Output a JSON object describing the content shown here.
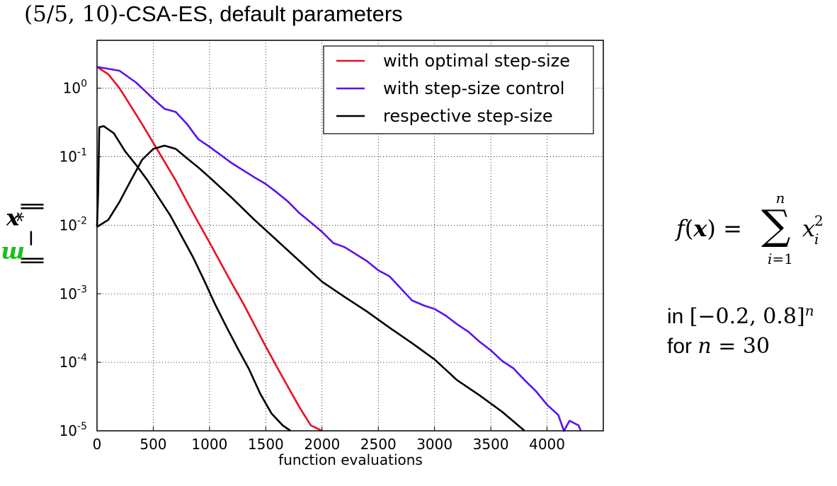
{
  "header": {
    "title_math": "(5/5, 10)",
    "title_text": "-CSA-ES, default parameters"
  },
  "chart_data": {
    "type": "line",
    "xlabel": "function evaluations",
    "ylabel": "||m − x*||",
    "xlim": [
      0,
      4500
    ],
    "ylim": [
      1e-05,
      5
    ],
    "yscale": "log",
    "grid": true,
    "legend_position": "top-right",
    "x_ticks": [
      "0",
      "500",
      "1000",
      "1500",
      "2000",
      "2500",
      "3000",
      "3500",
      "4000"
    ],
    "x_tick_values": [
      0,
      500,
      1000,
      1500,
      2000,
      2500,
      3000,
      3500,
      4000
    ],
    "y_ticks": [
      {
        "base": "10",
        "exp": "0",
        "value": 1
      },
      {
        "base": "10",
        "exp": "-1",
        "value": 0.1
      },
      {
        "base": "10",
        "exp": "-2",
        "value": 0.01
      },
      {
        "base": "10",
        "exp": "-3",
        "value": 0.001
      },
      {
        "base": "10",
        "exp": "-4",
        "value": 0.0001
      },
      {
        "base": "10",
        "exp": "-5",
        "value": 1e-05
      }
    ],
    "series": [
      {
        "name": "with optimal step-size",
        "color": "#e8101e",
        "points": [
          [
            0,
            2.05
          ],
          [
            100,
            1.6
          ],
          [
            200,
            1.0
          ],
          [
            300,
            0.55
          ],
          [
            400,
            0.3
          ],
          [
            500,
            0.16
          ],
          [
            600,
            0.085
          ],
          [
            700,
            0.045
          ],
          [
            800,
            0.022
          ],
          [
            900,
            0.011
          ],
          [
            1000,
            0.0056
          ],
          [
            1100,
            0.0028
          ],
          [
            1200,
            0.0014
          ],
          [
            1300,
            0.00072
          ],
          [
            1400,
            0.00035
          ],
          [
            1500,
            0.00017
          ],
          [
            1600,
            8.5e-05
          ],
          [
            1700,
            4.3e-05
          ],
          [
            1800,
            2.2e-05
          ],
          [
            1900,
            1.2e-05
          ],
          [
            2000,
            1e-05
          ]
        ]
      },
      {
        "name": "with step-size control",
        "color": "#5a12f0",
        "points": [
          [
            0,
            2.05
          ],
          [
            200,
            1.8
          ],
          [
            350,
            1.2
          ],
          [
            500,
            0.7
          ],
          [
            600,
            0.5
          ],
          [
            700,
            0.45
          ],
          [
            800,
            0.3
          ],
          [
            900,
            0.18
          ],
          [
            1000,
            0.14
          ],
          [
            1200,
            0.08
          ],
          [
            1400,
            0.05
          ],
          [
            1500,
            0.04
          ],
          [
            1600,
            0.03
          ],
          [
            1700,
            0.022
          ],
          [
            1800,
            0.015
          ],
          [
            1900,
            0.011
          ],
          [
            2000,
            0.008
          ],
          [
            2100,
            0.0055
          ],
          [
            2200,
            0.0048
          ],
          [
            2400,
            0.003
          ],
          [
            2500,
            0.0022
          ],
          [
            2600,
            0.0018
          ],
          [
            2700,
            0.0012
          ],
          [
            2800,
            0.0008
          ],
          [
            2900,
            0.00068
          ],
          [
            3000,
            0.0006
          ],
          [
            3100,
            0.00048
          ],
          [
            3200,
            0.00036
          ],
          [
            3300,
            0.00028
          ],
          [
            3400,
            0.0002
          ],
          [
            3500,
            0.00015
          ],
          [
            3600,
            0.000105
          ],
          [
            3700,
            8.2e-05
          ],
          [
            3800,
            5.5e-05
          ],
          [
            3900,
            3.8e-05
          ],
          [
            4000,
            2.4e-05
          ],
          [
            4100,
            1.7e-05
          ],
          [
            4150,
            1e-05
          ],
          [
            4200,
            1.4e-05
          ],
          [
            4280,
            1.2e-05
          ],
          [
            4300,
            1e-05
          ]
        ]
      },
      {
        "name": "respective step-size",
        "color": "#000000",
        "points": [
          [
            0,
            0.0095
          ],
          [
            10,
            0.03
          ],
          [
            20,
            0.27
          ],
          [
            60,
            0.28
          ],
          [
            150,
            0.22
          ],
          [
            250,
            0.12
          ],
          [
            350,
            0.075
          ],
          [
            450,
            0.045
          ],
          [
            550,
            0.025
          ],
          [
            650,
            0.014
          ],
          [
            750,
            0.007
          ],
          [
            850,
            0.0035
          ],
          [
            950,
            0.0016
          ],
          [
            1050,
            0.0007
          ],
          [
            1150,
            0.00033
          ],
          [
            1250,
            0.00016
          ],
          [
            1350,
            8e-05
          ],
          [
            1450,
            3.5e-05
          ],
          [
            1550,
            1.8e-05
          ],
          [
            1650,
            1.2e-05
          ],
          [
            1720,
            1e-05
          ]
        ]
      },
      {
        "name": "respective step-size",
        "color": "#000000",
        "points": [
          [
            0,
            0.0095
          ],
          [
            100,
            0.012
          ],
          [
            200,
            0.022
          ],
          [
            300,
            0.045
          ],
          [
            400,
            0.09
          ],
          [
            500,
            0.13
          ],
          [
            600,
            0.145
          ],
          [
            700,
            0.13
          ],
          [
            800,
            0.095
          ],
          [
            900,
            0.07
          ],
          [
            1000,
            0.05
          ],
          [
            1200,
            0.025
          ],
          [
            1400,
            0.012
          ],
          [
            1600,
            0.006
          ],
          [
            1800,
            0.003
          ],
          [
            2000,
            0.0015
          ],
          [
            2200,
            0.0009
          ],
          [
            2400,
            0.00055
          ],
          [
            2600,
            0.00032
          ],
          [
            2800,
            0.00019
          ],
          [
            3000,
            0.00011
          ],
          [
            3200,
            5.5e-05
          ],
          [
            3400,
            3.3e-05
          ],
          [
            3600,
            1.9e-05
          ],
          [
            3800,
            1e-05
          ]
        ]
      }
    ],
    "legend": [
      {
        "label": "with optimal step-size",
        "color": "#e8101e"
      },
      {
        "label": "with step-size control",
        "color": "#5a12f0"
      },
      {
        "label": "respective step-size",
        "color": "#000000"
      }
    ]
  },
  "formula": {
    "f": "f",
    "x": "x",
    "sum": "∑",
    "upper": "n",
    "lower": "i=1",
    "var": "x",
    "sub": "i",
    "sup": "2"
  },
  "domain_text": {
    "prefix": "in ",
    "interval": "[−0.2, 0.8]",
    "exp": "n",
    "line2_prefix": "for ",
    "var": "n",
    "rel": " = 30"
  }
}
